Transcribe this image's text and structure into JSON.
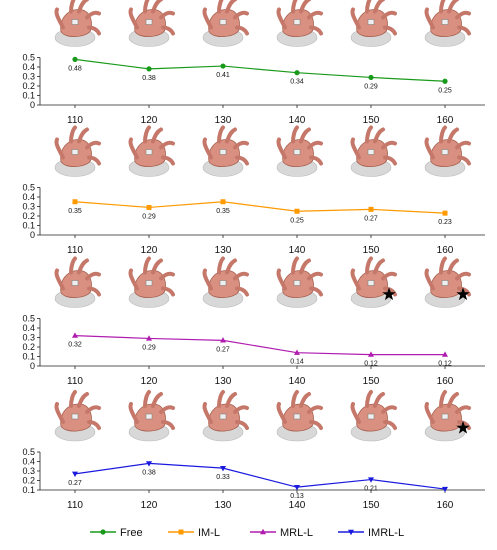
{
  "chart_data": [
    {
      "type": "line",
      "categories": [
        "110",
        "120",
        "130",
        "140",
        "150",
        "160"
      ],
      "series": [
        {
          "name": "Free",
          "values": [
            0.48,
            0.38,
            0.41,
            0.34,
            0.29,
            0.25
          ],
          "color": "#1a9a1a",
          "marker": "circle"
        }
      ],
      "value_labels": [
        "0.48",
        "0.38",
        "0.41",
        "0.34",
        "0.29",
        "0.25"
      ],
      "yticks": [
        "0",
        "0.1",
        "0.2",
        "0.3",
        "0.4",
        "0.5"
      ],
      "ylim": [
        0,
        0.5
      ],
      "stars": [],
      "grid": false
    },
    {
      "type": "line",
      "categories": [
        "110",
        "120",
        "130",
        "140",
        "150",
        "160"
      ],
      "series": [
        {
          "name": "IM-L",
          "values": [
            0.35,
            0.29,
            0.35,
            0.25,
            0.27,
            0.23
          ],
          "color": "#ff9900",
          "marker": "square"
        }
      ],
      "value_labels": [
        "0.35",
        "0.29",
        "0.35",
        "0.25",
        "0.27",
        "0.23"
      ],
      "yticks": [
        "0",
        "0.1",
        "0.2",
        "0.3",
        "0.4",
        "0.5"
      ],
      "ylim": [
        0,
        0.5
      ],
      "stars": [],
      "grid": false
    },
    {
      "type": "line",
      "categories": [
        "110",
        "120",
        "130",
        "140",
        "150",
        "160"
      ],
      "series": [
        {
          "name": "MRL-L",
          "values": [
            0.32,
            0.29,
            0.27,
            0.14,
            0.12,
            0.12
          ],
          "color": "#b01cb0",
          "marker": "triangle-up"
        }
      ],
      "value_labels": [
        "0.32",
        "0.29",
        "0.27",
        "0.14",
        "0.12",
        "0.12"
      ],
      "yticks": [
        "0",
        "0.1",
        "0.2",
        "0.3",
        "0.4",
        "0.5"
      ],
      "ylim": [
        0,
        0.5
      ],
      "stars": [
        "150",
        "160"
      ],
      "grid": false
    },
    {
      "type": "line",
      "categories": [
        "110",
        "120",
        "130",
        "140",
        "150",
        "160"
      ],
      "series": [
        {
          "name": "IMRL-L",
          "values": [
            0.27,
            0.38,
            0.33,
            0.13,
            0.21,
            0.11
          ],
          "color": "#1a1adf",
          "marker": "triangle-down"
        }
      ],
      "value_labels": [
        "0.27",
        "0.38",
        "0.33",
        "0.13",
        "0.21",
        ""
      ],
      "yticks": [
        "0.1",
        "0.2",
        "0.3",
        "0.4",
        "0.5"
      ],
      "ylim": [
        0.1,
        0.5
      ],
      "stars": [
        "160"
      ],
      "grid": false
    }
  ],
  "legend": {
    "placement": "bottom",
    "items": [
      {
        "label": "Free",
        "color": "#1a9a1a",
        "marker": "circle"
      },
      {
        "label": "IM-L",
        "color": "#ff9900",
        "marker": "square"
      },
      {
        "label": "MRL-L",
        "color": "#b01cb0",
        "marker": "triangle-up"
      },
      {
        "label": "IMRL-L",
        "color": "#1a1adf",
        "marker": "triangle-down"
      }
    ]
  },
  "illustration": {
    "description_icon": "hand-grasp-icon",
    "star_icon": "star-icon"
  }
}
